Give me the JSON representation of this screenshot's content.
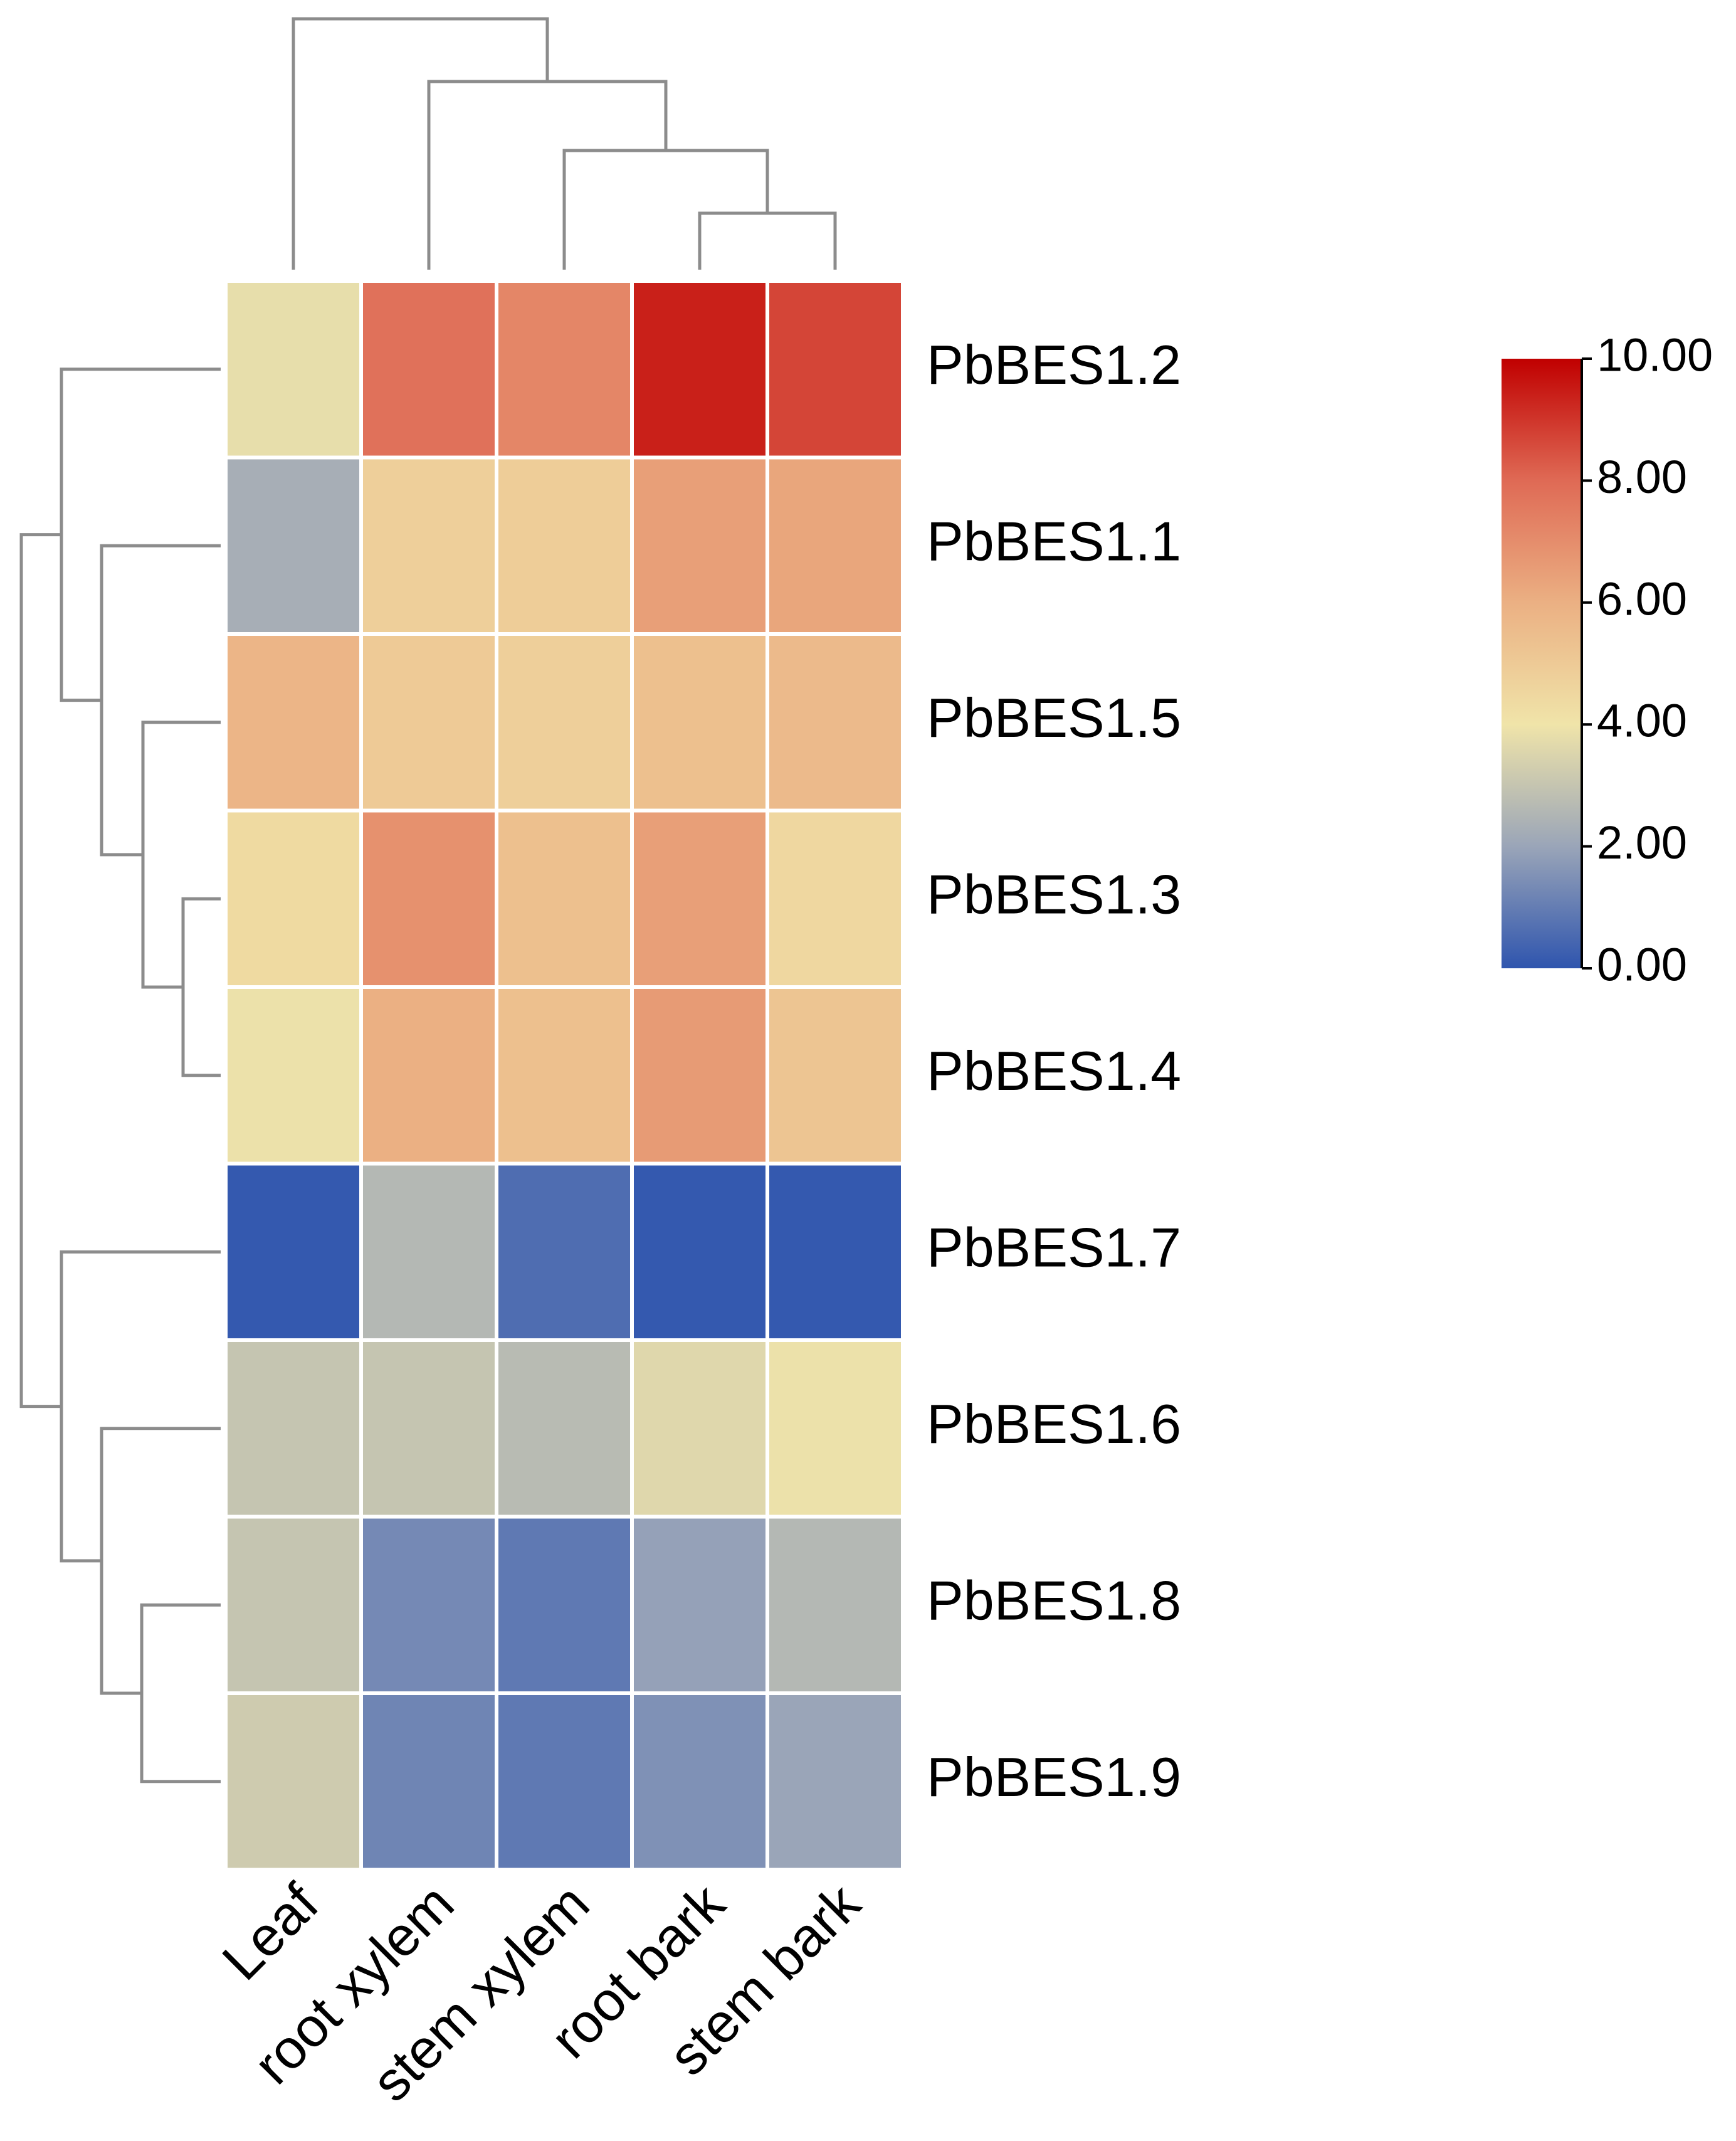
{
  "chart_data": {
    "type": "heatmap",
    "title": "",
    "rows": [
      "PbBES1.2",
      "PbBES1.1",
      "PbBES1.5",
      "PbBES1.3",
      "PbBES1.4",
      "PbBES1.7",
      "PbBES1.6",
      "PbBES1.8",
      "PbBES1.9"
    ],
    "columns": [
      "Leaf",
      "root xylem",
      "stem xylem",
      "root bark",
      "stem bark"
    ],
    "values": [
      [
        3.8,
        7.8,
        7.2,
        9.4,
        8.7
      ],
      [
        2.3,
        4.8,
        4.9,
        6.5,
        6.3
      ],
      [
        5.8,
        5.0,
        4.8,
        5.4,
        5.6
      ],
      [
        4.4,
        6.9,
        5.4,
        6.5,
        4.5
      ],
      [
        3.9,
        6.0,
        5.4,
        6.6,
        5.2
      ],
      [
        0.1,
        2.6,
        0.6,
        0.1,
        0.1
      ],
      [
        3.0,
        3.0,
        2.7,
        3.6,
        3.9
      ],
      [
        3.0,
        1.3,
        0.9,
        1.9,
        2.6
      ],
      [
        3.2,
        1.2,
        0.9,
        1.5,
        2.0
      ]
    ],
    "color_scale": {
      "min": 0,
      "max": 10,
      "stops": [
        {
          "value": 0,
          "color": "#2f55ae"
        },
        {
          "value": 2,
          "color": "#9aa5b8"
        },
        {
          "value": 4,
          "color": "#f0e4a9"
        },
        {
          "value": 6,
          "color": "#ebb083"
        },
        {
          "value": 8,
          "color": "#df6a55"
        },
        {
          "value": 10,
          "color": "#c00000"
        }
      ],
      "ticks": [
        "0.00",
        "2.00",
        "4.00",
        "6.00",
        "8.00",
        "10.00"
      ]
    },
    "cell_border_color": "#ffffff",
    "dendrogram_color": "#8c8c8c",
    "column_dendrogram": "((Leaf,(root xylem,(stem xylem,(root bark,stem bark)))))",
    "row_dendrogram": "((PbBES1.2,(PbBES1.1,(PbBES1.5,(PbBES1.3,PbBES1.4)))),(PbBES1.7,(PbBES1.6,(PbBES1.8,PbBES1.9))))",
    "legend_position": "right",
    "xlabel": "",
    "ylabel": ""
  }
}
